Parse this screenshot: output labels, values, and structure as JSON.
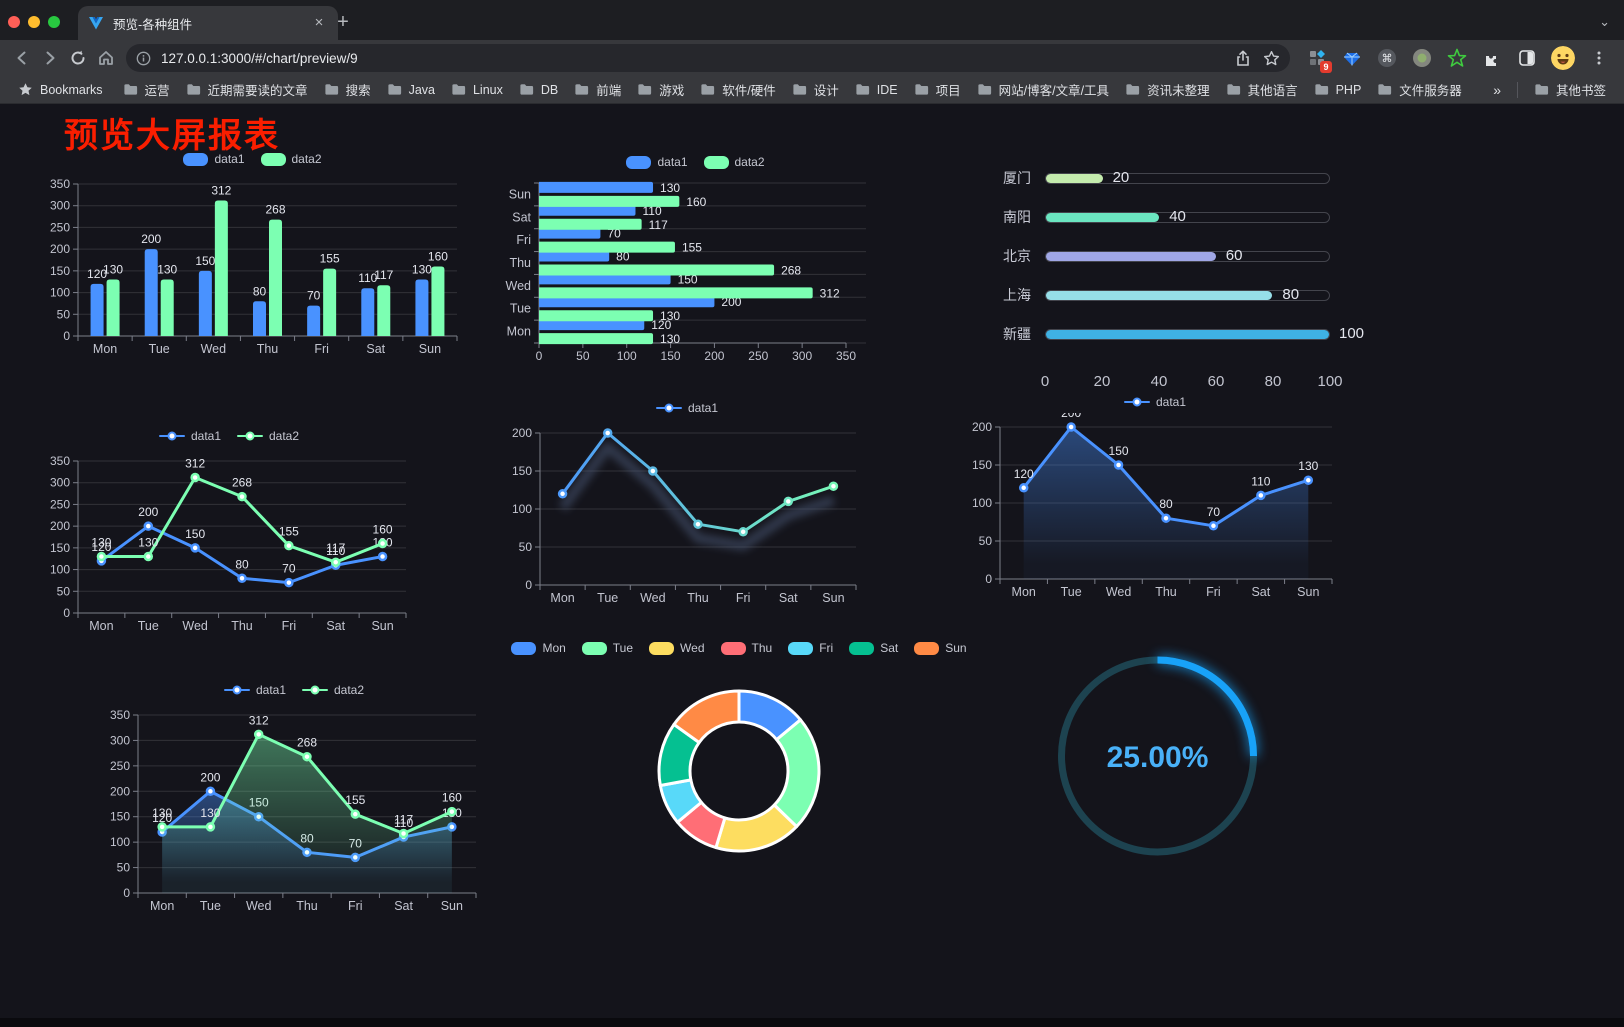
{
  "browser": {
    "tab_title": "预览-各种组件",
    "url": "127.0.0.1:3000/#/chart/preview/9",
    "new_tab_label": "+",
    "close_label": "×",
    "bookmarks_label": "Bookmarks",
    "bookmarks": [
      "运营",
      "近期需要读的文章",
      "搜索",
      "Java",
      "Linux",
      "DB",
      "前端",
      "游戏",
      "软件/硬件",
      "设计",
      "IDE",
      "项目",
      "网站/博客/文章/工具",
      "资讯未整理",
      "其他语言",
      "PHP",
      "文件服务器"
    ],
    "bookmarks_overflow": "»",
    "other_bookmarks": "其他书签",
    "extension_badge": "9"
  },
  "page": {
    "title": "预览大屏报表",
    "title_color": "#fa1e00",
    "background": "#14141b"
  },
  "theme": {
    "series_blue": "#4992ff",
    "series_green": "#7cffb2",
    "axis_label": "#c3c5d0",
    "value_label": "#e4e6ee"
  },
  "chart_data": [
    {
      "id": "bar-grouped",
      "type": "bar",
      "categories": [
        "Mon",
        "Tue",
        "Wed",
        "Thu",
        "Fri",
        "Sat",
        "Sun"
      ],
      "series": [
        {
          "name": "data1",
          "color": "#4992ff",
          "values": [
            120,
            200,
            150,
            80,
            70,
            110,
            130
          ]
        },
        {
          "name": "data2",
          "color": "#7cffb2",
          "values": [
            130,
            130,
            312,
            268,
            155,
            117,
            160
          ]
        }
      ],
      "ylim": [
        0,
        350
      ],
      "yticks": [
        0,
        50,
        100,
        150,
        200,
        250,
        300,
        350
      ],
      "legend_position": "top",
      "labels": true
    },
    {
      "id": "bar-horizontal",
      "type": "hbar",
      "categories_top_to_bottom": [
        "Sun",
        "Sat",
        "Fri",
        "Thu",
        "Wed",
        "Tue",
        "Mon"
      ],
      "series": [
        {
          "name": "data1",
          "color": "#4992ff",
          "values": [
            130,
            110,
            70,
            80,
            150,
            200,
            120
          ]
        },
        {
          "name": "data2",
          "color": "#7cffb2",
          "values": [
            160,
            117,
            155,
            268,
            312,
            130,
            130
          ]
        }
      ],
      "xlim": [
        0,
        350
      ],
      "xticks": [
        0,
        50,
        100,
        150,
        200,
        250,
        300,
        350
      ],
      "legend_position": "top",
      "labels": true
    },
    {
      "id": "progress-bars",
      "type": "progress",
      "items": [
        {
          "label": "厦门",
          "value": 20,
          "color": "#c4ebad"
        },
        {
          "label": "南阳",
          "value": 40,
          "color": "#6be6c1"
        },
        {
          "label": "北京",
          "value": 60,
          "color": "#a0a7e6"
        },
        {
          "label": "上海",
          "value": 80,
          "color": "#96dee8"
        },
        {
          "label": "新疆",
          "value": 100,
          "color": "#3fb1e3"
        }
      ],
      "max": 100,
      "ticks": [
        0,
        20,
        40,
        60,
        80,
        100
      ]
    },
    {
      "id": "line-basic",
      "type": "line",
      "categories": [
        "Mon",
        "Tue",
        "Wed",
        "Thu",
        "Fri",
        "Sat",
        "Sun"
      ],
      "series": [
        {
          "name": "data1",
          "color": "#4992ff",
          "values": [
            120,
            200,
            150,
            80,
            70,
            110,
            130
          ]
        },
        {
          "name": "data2",
          "color": "#7cffb2",
          "values": [
            130,
            130,
            312,
            268,
            155,
            117,
            160
          ]
        }
      ],
      "ylim": [
        0,
        350
      ],
      "yticks": [
        0,
        50,
        100,
        150,
        200,
        250,
        300,
        350
      ],
      "legend_position": "top",
      "labels": true
    },
    {
      "id": "line-gradient",
      "type": "line",
      "categories": [
        "Mon",
        "Tue",
        "Wed",
        "Thu",
        "Fri",
        "Sat",
        "Sun"
      ],
      "series": [
        {
          "name": "data1",
          "color": "#4992ff",
          "color_end": "#7cffb2",
          "values": [
            120,
            200,
            150,
            80,
            70,
            110,
            130
          ]
        }
      ],
      "ylim": [
        0,
        200
      ],
      "yticks": [
        0,
        50,
        100,
        150,
        200
      ],
      "legend_position": "top",
      "labels": false,
      "shadow": true
    },
    {
      "id": "line-area",
      "type": "line",
      "categories": [
        "Mon",
        "Tue",
        "Wed",
        "Thu",
        "Fri",
        "Sat",
        "Sun"
      ],
      "series": [
        {
          "name": "data1",
          "color": "#4992ff",
          "area": true,
          "values": [
            120,
            200,
            150,
            80,
            70,
            110,
            130
          ]
        }
      ],
      "ylim": [
        0,
        200
      ],
      "yticks": [
        0,
        50,
        100,
        150,
        200
      ],
      "legend_position": "top",
      "labels": true
    },
    {
      "id": "line-area-double",
      "type": "line",
      "categories": [
        "Mon",
        "Tue",
        "Wed",
        "Thu",
        "Fri",
        "Sat",
        "Sun"
      ],
      "series": [
        {
          "name": "data1",
          "color": "#4992ff",
          "area": true,
          "values": [
            120,
            200,
            150,
            80,
            70,
            110,
            130
          ]
        },
        {
          "name": "data2",
          "color": "#7cffb2",
          "area": true,
          "values": [
            130,
            130,
            312,
            268,
            155,
            117,
            160
          ]
        }
      ],
      "ylim": [
        0,
        350
      ],
      "yticks": [
        0,
        50,
        100,
        150,
        200,
        250,
        300,
        350
      ],
      "legend_position": "top",
      "labels": true
    },
    {
      "id": "donut",
      "type": "pie",
      "items": [
        {
          "label": "Mon",
          "value": 120,
          "color": "#4992ff"
        },
        {
          "label": "Tue",
          "value": 200,
          "color": "#7cffb2"
        },
        {
          "label": "Wed",
          "value": 150,
          "color": "#fddd60"
        },
        {
          "label": "Thu",
          "value": 80,
          "color": "#ff6e76"
        },
        {
          "label": "Fri",
          "value": 70,
          "color": "#58d9f9"
        },
        {
          "label": "Sat",
          "value": 110,
          "color": "#05c091"
        },
        {
          "label": "Sun",
          "value": 130,
          "color": "#ff8a45"
        }
      ],
      "legend_position": "top"
    },
    {
      "id": "gauge",
      "type": "gauge",
      "value": 25,
      "display": "25.00%",
      "color": "#18a2f8",
      "track_color": "#1d4350",
      "text_color": "#49b1f8"
    }
  ]
}
